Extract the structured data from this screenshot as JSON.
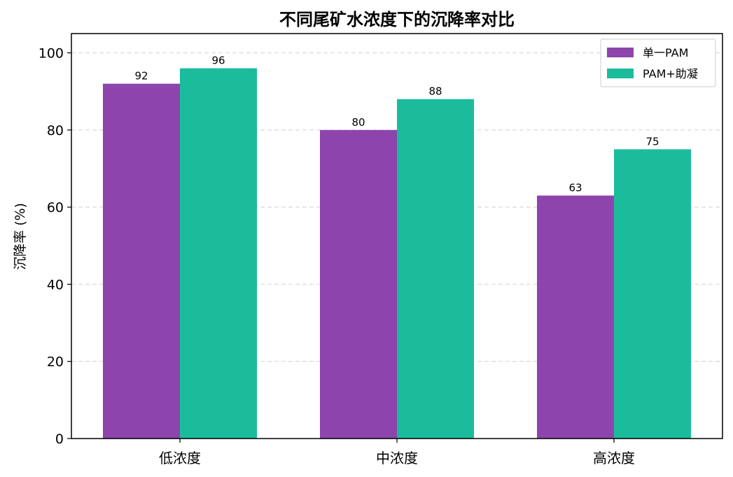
{
  "chart_data": {
    "type": "bar",
    "title": "不同尾矿水浓度下的沉降率对比",
    "xlabel": "",
    "ylabel": "沉降率 (%)",
    "categories": [
      "低浓度",
      "中浓度",
      "高浓度"
    ],
    "series": [
      {
        "name": "单一PAM",
        "values": [
          92,
          80,
          63
        ],
        "color": "#8e44ad"
      },
      {
        "name": "PAM+助凝",
        "values": [
          96,
          88,
          75
        ],
        "color": "#1abc9c"
      }
    ],
    "ylim": [
      0,
      105
    ],
    "yticks": [
      0,
      20,
      40,
      60,
      80,
      100
    ],
    "grid": true,
    "legend_position": "top-right"
  }
}
